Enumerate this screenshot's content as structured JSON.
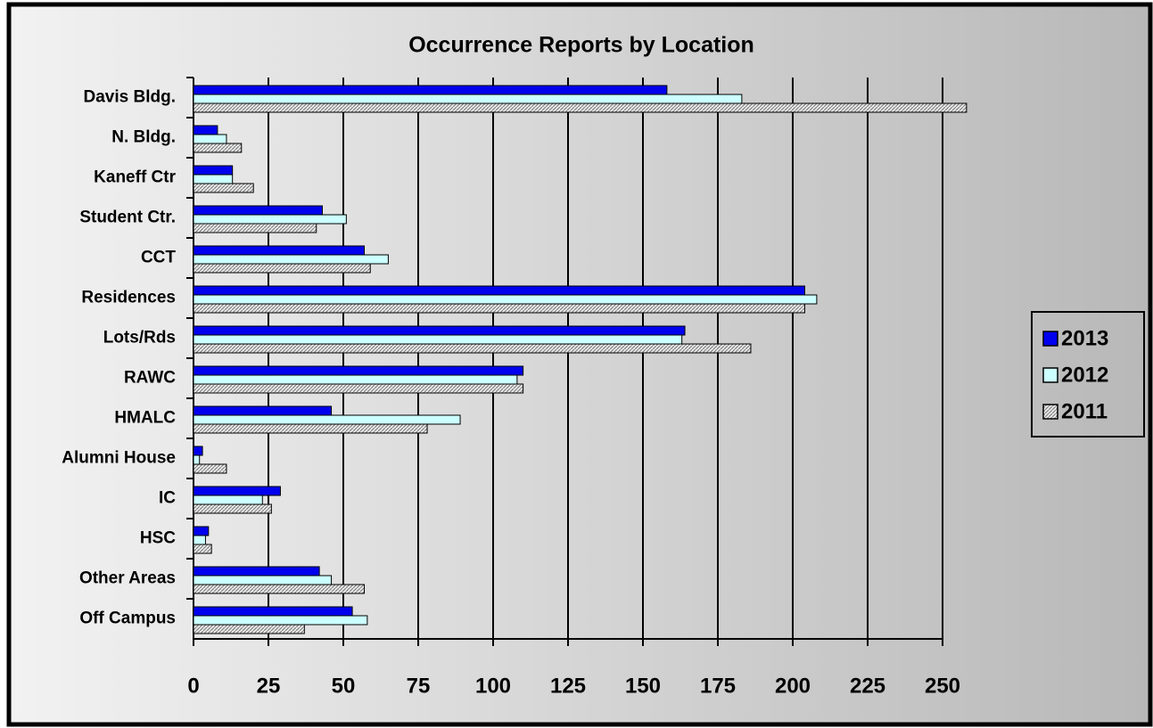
{
  "chart_data": {
    "type": "bar",
    "orientation": "horizontal",
    "title": "Occurrence Reports by Location",
    "categories": [
      "Davis Bldg.",
      "N. Bldg.",
      "Kaneff Ctr",
      "Student Ctr.",
      "CCT",
      "Residences",
      "Lots/Rds",
      "RAWC",
      "HMALC",
      "Alumni House",
      "IC",
      "HSC",
      "Other Areas",
      "Off Campus"
    ],
    "series": [
      {
        "name": "2013",
        "color": "#0000ee",
        "values": [
          158,
          8,
          13,
          43,
          57,
          204,
          164,
          110,
          46,
          3,
          29,
          5,
          42,
          53
        ]
      },
      {
        "name": "2012",
        "color": "#ccffff",
        "values": [
          183,
          11,
          13,
          51,
          65,
          208,
          163,
          108,
          89,
          2,
          23,
          4,
          46,
          58
        ]
      },
      {
        "name": "2011",
        "color": "#c0c0c0",
        "values": [
          258,
          16,
          20,
          41,
          59,
          204,
          186,
          110,
          78,
          11,
          26,
          6,
          57,
          37
        ]
      }
    ],
    "xlim": [
      0,
      250
    ],
    "xticks": [
      0,
      25,
      50,
      75,
      100,
      125,
      150,
      175,
      200,
      225,
      250
    ],
    "grid": true,
    "legend": "right"
  }
}
